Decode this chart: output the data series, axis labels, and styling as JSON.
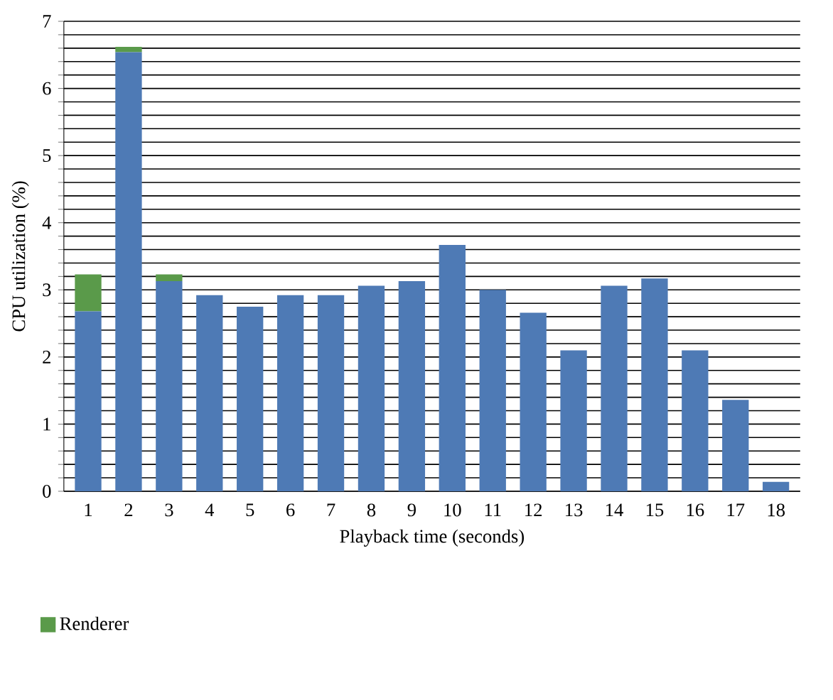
{
  "chart_data": {
    "type": "bar",
    "stacked": true,
    "xlabel": "Playback time (seconds)",
    "ylabel": "CPU utilization (%)",
    "categories": [
      "1",
      "2",
      "3",
      "4",
      "5",
      "6",
      "7",
      "8",
      "9",
      "10",
      "11",
      "12",
      "13",
      "14",
      "15",
      "16",
      "17",
      "18"
    ],
    "series": [
      {
        "color": "#4e7ab5",
        "values": [
          2.68,
          6.54,
          3.13,
          2.92,
          2.75,
          2.92,
          2.92,
          3.06,
          3.13,
          3.67,
          3.0,
          2.66,
          2.1,
          3.06,
          3.17,
          2.1,
          1.36,
          0.14
        ]
      },
      {
        "name": "Renderer",
        "color": "#5a9a4a",
        "values": [
          0.55,
          0.08,
          0.1,
          0,
          0,
          0,
          0,
          0,
          0,
          0,
          0,
          0,
          0,
          0,
          0,
          0,
          0,
          0
        ]
      }
    ],
    "ylim": [
      0,
      7
    ],
    "yticks": [
      0,
      {
        "value": 0.2,
        "label": null
      },
      {
        "value": 0.4,
        "label": null
      },
      {
        "value": 0.6,
        "label": null
      },
      {
        "value": 0.8,
        "label": null
      },
      1,
      {
        "value": 1.2,
        "label": null
      },
      {
        "value": 1.4,
        "label": null
      },
      {
        "value": 1.6,
        "label": null
      },
      {
        "value": 1.8,
        "label": null
      },
      2,
      {
        "value": 2.2,
        "label": null
      },
      {
        "value": 2.4,
        "label": null
      },
      {
        "value": 2.6,
        "label": null
      },
      {
        "value": 2.8,
        "label": null
      },
      3,
      {
        "value": 3.2,
        "label": null
      },
      {
        "value": 3.4,
        "label": null
      },
      {
        "value": 3.6,
        "label": null
      },
      {
        "value": 3.8,
        "label": null
      },
      4,
      {
        "value": 4.2,
        "label": null
      },
      {
        "value": 4.4,
        "label": null
      },
      {
        "value": 4.6,
        "label": null
      },
      {
        "value": 4.8,
        "label": null
      },
      5,
      {
        "value": 5.2,
        "label": null
      },
      {
        "value": 5.4,
        "label": null
      },
      {
        "value": 5.6,
        "label": null
      },
      {
        "value": 5.8,
        "label": null
      },
      6,
      {
        "value": 6.2,
        "label": null
      },
      {
        "value": 6.4,
        "label": null
      },
      {
        "value": 6.6,
        "label": null
      },
      {
        "value": 6.8,
        "label": null
      },
      7
    ],
    "grid": "y",
    "legend": "bottom left"
  }
}
